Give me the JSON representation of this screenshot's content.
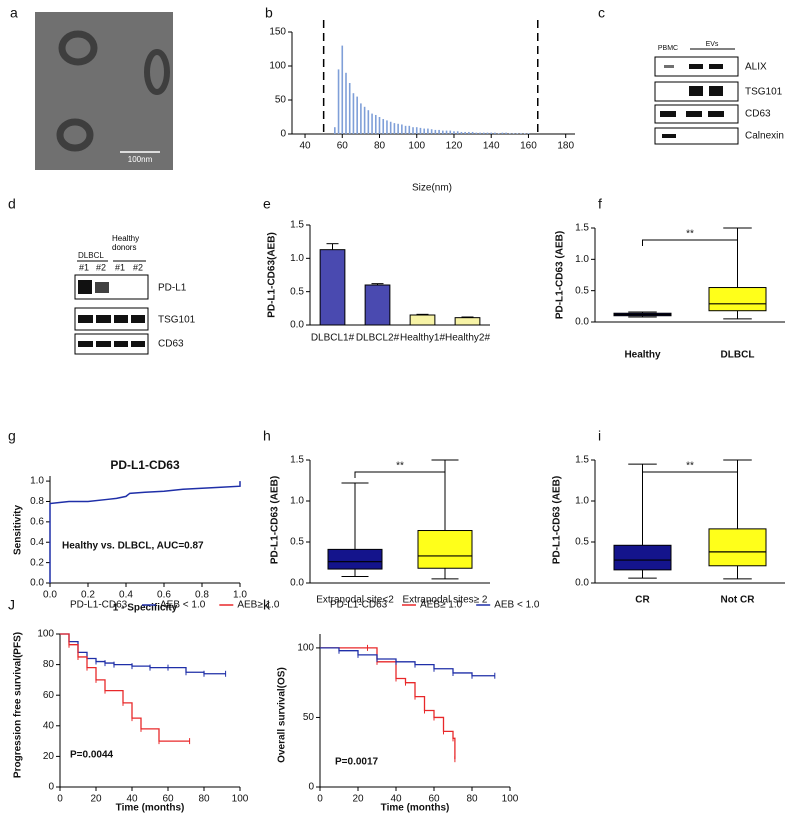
{
  "images": [
    {
      "panel": "a",
      "scale_bar": "100nm"
    }
  ],
  "blots": [
    {
      "panel": "c",
      "column_labels": [
        "PBMC",
        "EVs"
      ],
      "rows": [
        "ALIX",
        "TSG101",
        "CD63",
        "Calnexin"
      ]
    },
    {
      "panel": "d",
      "group_labels": [
        "DLBCL",
        "Healthy donors"
      ],
      "lane_labels": [
        "#1",
        "#2",
        "#1",
        "#2"
      ],
      "rows": [
        "PD-L1",
        "TSG101",
        "CD63"
      ]
    }
  ],
  "chart_data": [
    {
      "panel": "b",
      "type": "bar",
      "xlabel": "Size(nm)",
      "color": "#7f9fd8",
      "x": [
        56,
        58,
        60,
        62,
        64,
        66,
        68,
        70,
        72,
        74,
        76,
        78,
        80,
        82,
        84,
        86,
        88,
        90,
        92,
        94,
        96,
        98,
        100,
        102,
        104,
        106,
        108,
        110,
        112,
        114,
        116,
        118,
        120,
        122,
        124,
        126,
        128,
        130,
        132,
        134,
        136,
        138,
        140,
        142,
        144,
        146,
        148,
        150,
        152,
        154,
        156,
        158,
        160
      ],
      "values": [
        10,
        95,
        130,
        90,
        75,
        60,
        55,
        45,
        40,
        35,
        30,
        28,
        25,
        22,
        20,
        18,
        16,
        15,
        14,
        12,
        12,
        10,
        10,
        9,
        8,
        8,
        7,
        6,
        6,
        5,
        5,
        5,
        4,
        4,
        3,
        3,
        3,
        3,
        2,
        2,
        2,
        2,
        2,
        2,
        1,
        2,
        2,
        1,
        1,
        1,
        1,
        1,
        1
      ],
      "vlines": [
        50,
        165
      ],
      "xlim": [
        33,
        185
      ],
      "xticks": [
        40,
        60,
        80,
        100,
        120,
        140,
        160,
        180
      ],
      "ylim": [
        0,
        150
      ],
      "yticks": [
        0,
        50,
        100,
        150
      ]
    },
    {
      "panel": "e",
      "type": "bar",
      "ylabel": "PD-L1-CD63(AEB)",
      "categories": [
        "DLBCL1#",
        "DLBCL2#",
        "Healthy1#",
        "Healthy2#"
      ],
      "values": [
        1.13,
        0.6,
        0.15,
        0.11
      ],
      "errors": [
        0.09,
        0.02,
        0.01,
        0.01
      ],
      "colors": [
        "#4a4ab0",
        "#4a4ab0",
        "#f7f3a6",
        "#f7f3a6"
      ],
      "ylim": [
        0,
        1.5
      ],
      "yticks": [
        {
          "value": 0,
          "label": "0.0"
        },
        0.5,
        {
          "value": 1,
          "label": "1.0"
        },
        1.5
      ]
    },
    {
      "panel": "f",
      "type": "box",
      "ylabel": "PD-L1-CD63 (AEB)",
      "annotation": "**",
      "categories": [
        "Healthy",
        "DLBCL"
      ],
      "colors": [
        "#14148c",
        "#ffff1a"
      ],
      "boxes": [
        {
          "min": 0.08,
          "q1": 0.1,
          "median": 0.12,
          "q3": 0.14,
          "max": 0.16
        },
        {
          "min": 0.05,
          "q1": 0.18,
          "median": 0.29,
          "q3": 0.55,
          "max": 1.5
        }
      ],
      "ylim": [
        0,
        1.5
      ],
      "yticks": [
        {
          "value": 0,
          "label": "0.0"
        },
        0.5,
        {
          "value": 1,
          "label": "1.0"
        },
        1.5
      ]
    },
    {
      "panel": "g",
      "type": "line",
      "title": "PD-L1-CD63",
      "xlabel": "1 - Specificity",
      "ylabel": "Sensitivity",
      "annotation": "Healthy vs. DLBCL, AUC=0.87",
      "color": "#1f2fa8",
      "x": [
        0,
        0,
        0.05,
        0.1,
        0.2,
        0.3,
        0.35,
        0.4,
        0.42,
        0.5,
        0.6,
        0.7,
        0.8,
        0.9,
        1,
        1
      ],
      "values": [
        0,
        0.78,
        0.79,
        0.8,
        0.8,
        0.82,
        0.83,
        0.85,
        0.88,
        0.89,
        0.9,
        0.92,
        0.93,
        0.94,
        0.95,
        1
      ],
      "xlim": [
        0,
        1
      ],
      "xticks": [
        {
          "value": 0,
          "label": "0.0"
        },
        0.2,
        0.4,
        0.6,
        0.8,
        {
          "value": 1,
          "label": "1.0"
        }
      ],
      "ylim": [
        0,
        1.05
      ],
      "yticks": [
        {
          "value": 0,
          "label": "0.0"
        },
        0.2,
        0.4,
        0.6,
        0.8,
        {
          "value": 1,
          "label": "1.0"
        }
      ]
    },
    {
      "panel": "h",
      "type": "box",
      "ylabel": "PD-L1-CD63 (AEB)",
      "annotation": "**",
      "categories": [
        "Extranodal site<2",
        "Extranodal sites≥ 2"
      ],
      "colors": [
        "#14148c",
        "#ffff1a"
      ],
      "boxes": [
        {
          "min": 0.08,
          "q1": 0.17,
          "median": 0.26,
          "q3": 0.41,
          "max": 1.22
        },
        {
          "min": 0.05,
          "q1": 0.18,
          "median": 0.33,
          "q3": 0.64,
          "max": 1.5
        }
      ],
      "ylim": [
        0,
        1.5
      ],
      "yticks": [
        {
          "value": 0,
          "label": "0.0"
        },
        0.5,
        {
          "value": 1,
          "label": "1.0"
        },
        1.5
      ]
    },
    {
      "panel": "i",
      "type": "box",
      "ylabel": "PD-L1-CD63 (AEB)",
      "annotation": "**",
      "categories": [
        "CR",
        "Not CR"
      ],
      "colors": [
        "#14148c",
        "#ffff1a"
      ],
      "boxes": [
        {
          "min": 0.06,
          "q1": 0.16,
          "median": 0.28,
          "q3": 0.46,
          "max": 1.45
        },
        {
          "min": 0.05,
          "q1": 0.21,
          "median": 0.38,
          "q3": 0.66,
          "max": 1.5
        }
      ],
      "ylim": [
        0,
        1.5
      ],
      "yticks": [
        {
          "value": 0,
          "label": "0.0"
        },
        0.5,
        {
          "value": 1,
          "label": "1.0"
        },
        1.5
      ]
    },
    {
      "panel": "J",
      "type": "survival",
      "legend_title": "PD-L1-CD63",
      "xlabel": "Time (months)",
      "ylabel": "Progression free survival(PFS)",
      "annotation": "P=0.0044",
      "series": [
        {
          "name": "AEB < 1.0",
          "color": "#1f2fa8",
          "x": [
            0,
            5,
            10,
            15,
            20,
            25,
            30,
            40,
            50,
            60,
            70,
            80,
            92
          ],
          "values": [
            100,
            95,
            88,
            84,
            82,
            81,
            80,
            79,
            78,
            78,
            75,
            74,
            74
          ]
        },
        {
          "name": "AEB≥  1.0",
          "color": "#e8282a",
          "x": [
            0,
            5,
            10,
            15,
            20,
            25,
            35,
            40,
            45,
            55,
            72
          ],
          "values": [
            100,
            93,
            85,
            78,
            70,
            63,
            55,
            45,
            38,
            30,
            30
          ]
        }
      ],
      "xlim": [
        0,
        100
      ],
      "xticks": [
        0,
        20,
        40,
        60,
        80,
        100
      ],
      "ylim": [
        0,
        100
      ],
      "yticks": [
        0,
        20,
        40,
        60,
        80,
        100
      ]
    },
    {
      "panel": "k",
      "type": "survival",
      "legend_title": "PD-L1-CD63",
      "xlabel": "Time (months)",
      "ylabel": "Overall survival(OS)",
      "annotation": "P=0.0017",
      "series": [
        {
          "name": "AEB≥  1.0",
          "color": "#e8282a",
          "x": [
            0,
            25,
            30,
            40,
            45,
            50,
            55,
            60,
            65,
            70,
            71
          ],
          "values": [
            100,
            100,
            90,
            78,
            75,
            65,
            55,
            50,
            40,
            35,
            20
          ]
        },
        {
          "name": "AEB < 1.0",
          "color": "#1f2fa8",
          "x": [
            0,
            10,
            20,
            30,
            40,
            50,
            60,
            70,
            80,
            92
          ],
          "values": [
            100,
            98,
            95,
            92,
            90,
            88,
            85,
            82,
            80,
            80
          ]
        }
      ],
      "xlim": [
        0,
        100
      ],
      "xticks": [
        0,
        20,
        40,
        60,
        80,
        100
      ],
      "ylim": [
        0,
        110
      ],
      "yticks": [
        0,
        50,
        100
      ]
    }
  ]
}
